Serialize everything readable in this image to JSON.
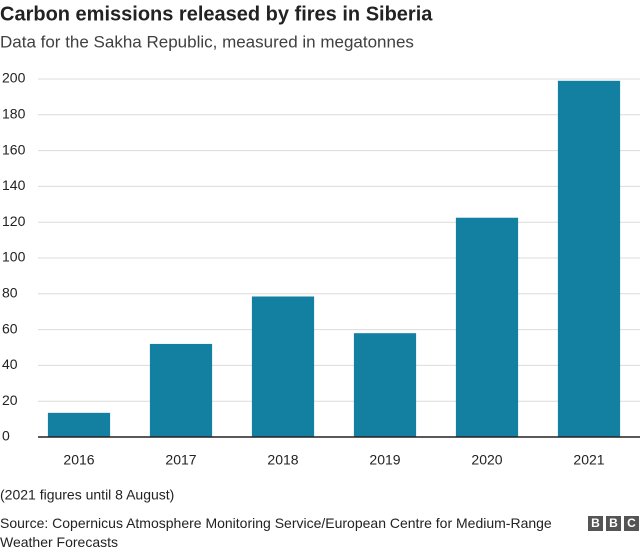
{
  "chart_data": {
    "type": "bar",
    "title": "Carbon emissions released by fires in Siberia",
    "subtitle": "Data for the Sakha Republic, measured in megatonnes",
    "categories": [
      "2016",
      "2017",
      "2018",
      "2019",
      "2020",
      "2021"
    ],
    "values": [
      13.5,
      52,
      78.5,
      58,
      122.5,
      199
    ],
    "color": "#1380a1",
    "ylim": [
      0,
      200
    ],
    "yticks": [
      0,
      20,
      40,
      60,
      80,
      100,
      120,
      140,
      160,
      180,
      200
    ],
    "grid": true,
    "note": "(2021 figures until 8 August)",
    "source": "Source: Copernicus Atmosphere Monitoring Service/European Centre for Medium-Range Weather Forecasts",
    "logo": [
      "B",
      "B",
      "C"
    ]
  }
}
